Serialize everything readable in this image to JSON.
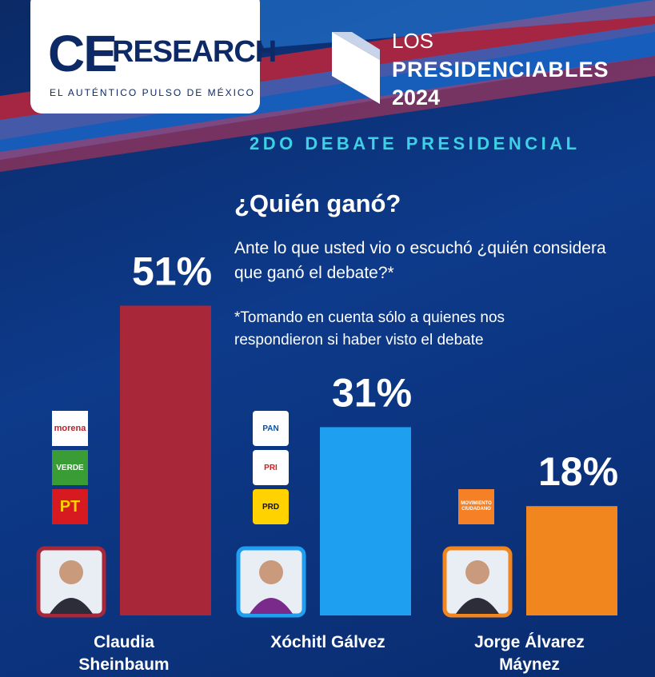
{
  "header": {
    "brand_a": "CE",
    "brand_b": "RESEARCH",
    "tagline": "EL AUTÉNTICO PULSO DE MÉXICO",
    "series_title": [
      "LOS",
      "PRESIDENCIABLES",
      "2024"
    ],
    "event": "2DO DEBATE PRESIDENCIAL"
  },
  "chart_data": {
    "type": "bar",
    "title": "¿Quién ganó?",
    "subtitle": "Ante lo que usted vio o escuchó ¿quién considera que ganó el debate?*",
    "note": "*Tomando en cuenta sólo a quienes nos respondieron si haber visto el debate",
    "categories": [
      "Claudia Sheinbaum",
      "Xóchitl Gálvez",
      "Jorge Álvarez Máynez"
    ],
    "values": [
      51,
      31,
      18
    ],
    "value_labels": [
      "51%",
      "31%",
      "18%"
    ],
    "colors": [
      "#a8283a",
      "#1e9ff0",
      "#f0861d"
    ],
    "parties": [
      [
        "morena",
        "VERDE",
        "PT"
      ],
      [
        "PAN",
        "PRI",
        "PRD"
      ],
      [
        "MOVIMIENTO CIUDADANO"
      ]
    ]
  }
}
